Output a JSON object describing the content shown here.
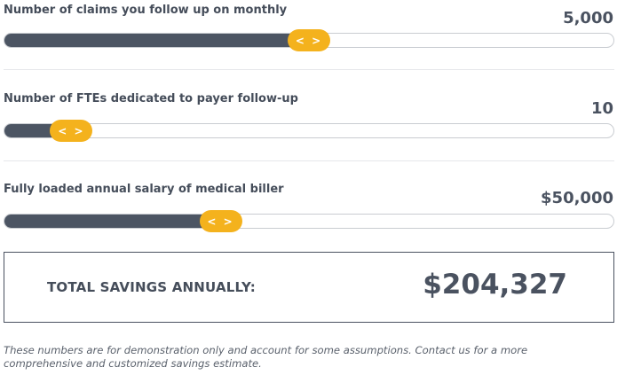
{
  "sliders": [
    {
      "label": "Number of claims you follow up on monthly",
      "value_text": "5,000",
      "fill_fraction": 0.5,
      "handle_label": "< >"
    },
    {
      "label": "Number of FTEs dedicated to payer follow-up",
      "value_text": "10",
      "fill_fraction": 0.11,
      "handle_label": "< >"
    },
    {
      "label": "Fully loaded annual salary of medical biller",
      "value_text": "$50,000",
      "fill_fraction": 0.355,
      "handle_label": "< >"
    }
  ],
  "total": {
    "label": "TOTAL SAVINGS ANNUALLY:",
    "value": "$204,327"
  },
  "disclaimer": "These numbers are for demonstration only and account for some assumptions. Contact us for a more comprehensive and customized savings estimate.",
  "colors": {
    "track_fill": "#4c5563",
    "handle": "#f4b21d",
    "text": "#4a5260"
  }
}
